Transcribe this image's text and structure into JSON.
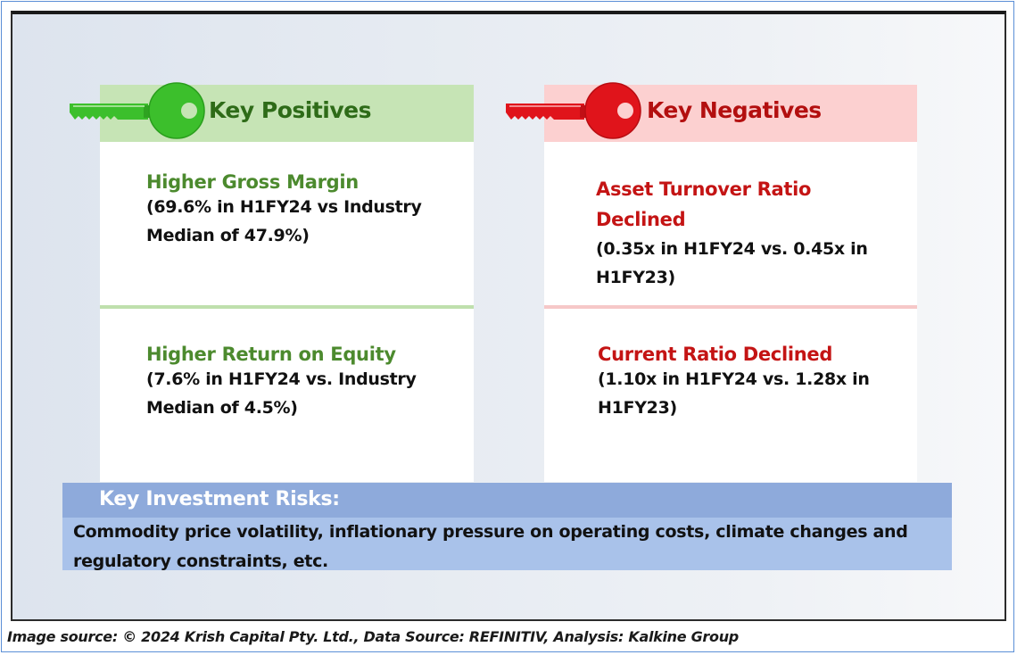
{
  "colors": {
    "positive_accent": "#2e6b18",
    "positive_header_bg": "#c6e4b5",
    "positive_key": "#3cbf2c",
    "negative_accent": "#b30f0f",
    "negative_header_bg": "#fcd0d0",
    "negative_key": "#e0141b",
    "risk_header_bg": "#8eaadb",
    "risk_body_bg": "#a9c2ea"
  },
  "positives": {
    "title": "Key Positives",
    "icon": "green-key-icon",
    "items": [
      {
        "title": "Higher Gross Margin",
        "text": "(69.6% in H1FY24 vs Industry\nMedian of 47.9%)"
      },
      {
        "title": "Higher Return on Equity",
        "text": "(7.6% in H1FY24 vs. Industry\nMedian of 4.5%)"
      }
    ]
  },
  "negatives": {
    "title": "Key Negatives",
    "icon": "red-key-icon",
    "items": [
      {
        "title": "Asset Turnover Ratio\nDeclined",
        "text": "(0.35x in H1FY24 vs. 0.45x in\nH1FY23)"
      },
      {
        "title": "Current Ratio Declined",
        "text": "(1.10x in H1FY24 vs. 1.28x in\nH1FY23)"
      }
    ]
  },
  "risks": {
    "title": "Key Investment Risks:",
    "text": "Commodity price volatility, inflationary pressure on operating costs, climate changes and regulatory constraints, etc."
  },
  "footer": "Image source: © 2024 Krish Capital Pty. Ltd., Data Source: REFINITIV, Analysis: Kalkine Group"
}
